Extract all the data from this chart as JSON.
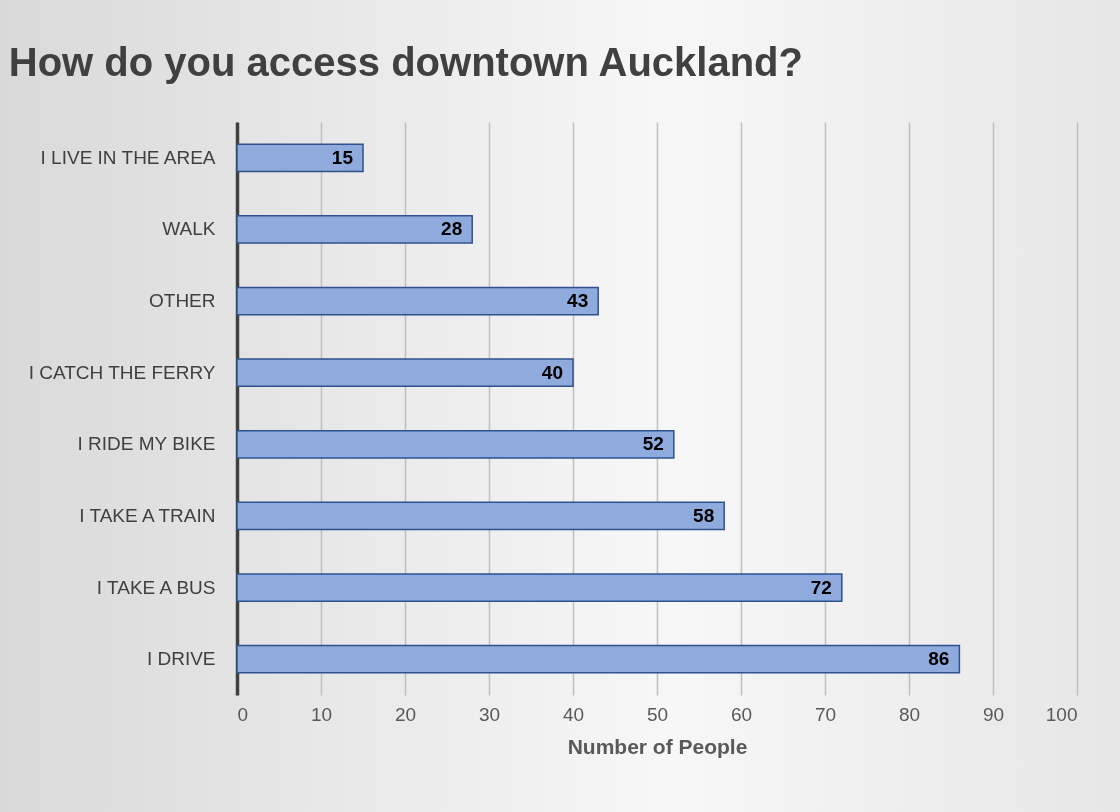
{
  "chart_data": {
    "type": "bar",
    "orientation": "horizontal",
    "title": "How do you access downtown Auckland?",
    "xlabel": "Number of People",
    "categories": [
      "I LIVE IN THE AREA",
      "WALK",
      "OTHER",
      "I CATCH THE FERRY",
      "I RIDE MY BIKE",
      "I TAKE A TRAIN",
      "I TAKE A BUS",
      "I DRIVE"
    ],
    "values": [
      15,
      28,
      43,
      40,
      52,
      58,
      72,
      86
    ],
    "color": "#8faadc",
    "xlim": [
      0,
      100
    ],
    "xticks": [
      0,
      10,
      20,
      30,
      40,
      50,
      60,
      70,
      80,
      90,
      100
    ],
    "grid": "x",
    "data_labels": true
  }
}
